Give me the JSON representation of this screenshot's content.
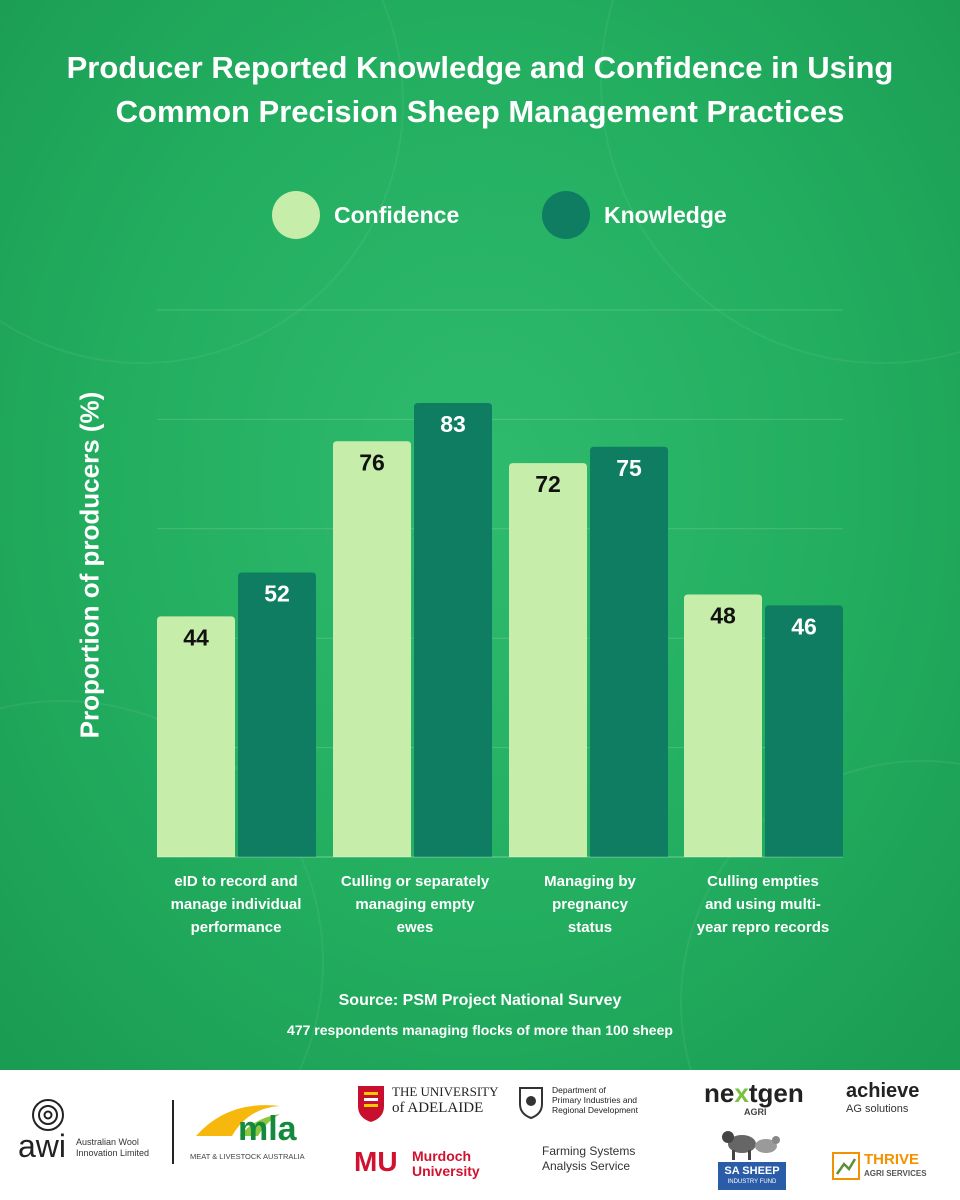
{
  "title_line1": "Producer Reported Knowledge and Confidence in Using",
  "title_line2": "Common Precision Sheep Management Practices",
  "colors": {
    "confidence": "#c6eeaa",
    "knowledge": "#0e7d62",
    "background": "#22ad5f",
    "mla": "#138a3c",
    "adelaide_red": "#c8102e",
    "thrive_orange": "#f39200"
  },
  "chart_data": {
    "type": "bar",
    "title": "Producer Reported Knowledge and Confidence in Using Common Precision Sheep Management Practices",
    "xlabel": "",
    "ylabel": "Proportion of producers (%)",
    "ylim": [
      0,
      100
    ],
    "grid": true,
    "legend": "top",
    "categories": [
      [
        "eID to record and",
        "manage individual",
        "performance"
      ],
      [
        "Culling or separately",
        "managing empty",
        "ewes"
      ],
      [
        "Managing by",
        "pregnancy",
        "status"
      ],
      [
        "Culling empties",
        "and using multi-",
        "year repro records"
      ]
    ],
    "series": [
      {
        "name": "Confidence",
        "values": [
          44,
          76,
          72,
          48
        ]
      },
      {
        "name": "Knowledge",
        "values": [
          52,
          83,
          75,
          46
        ]
      }
    ]
  },
  "source": "Source: PSM Project National Survey",
  "note": "477 respondents managing flocks of more than 100 sheep",
  "logos": {
    "awi": {
      "mark": "awi",
      "name_line1": "Australian Wool",
      "name_line2": "Innovation Limited"
    },
    "mla": {
      "mark": "mla",
      "sub": "MEAT & LIVESTOCK AUSTRALIA"
    },
    "adelaide": {
      "line1": "THE UNIVERSITY",
      "line2": "of ADELAIDE"
    },
    "murdoch": {
      "mark": "MU",
      "line1": "Murdoch",
      "line2": "University"
    },
    "dpird": {
      "line1": "Department of",
      "line2": "Primary Industries and",
      "line3": "Regional Development"
    },
    "fsas": {
      "line1": "Farming Systems",
      "line2": "Analysis Service"
    },
    "nextgen": {
      "part1": "ne",
      "part2": "x",
      "part3": "tgen",
      "sub": "AGRI"
    },
    "sasheep": {
      "line1": "SA SHEEP",
      "line2": "INDUSTRY FUND"
    },
    "achieve": {
      "main": "achieve",
      "sub": "AG solutions"
    },
    "thrive": {
      "line1": "THRIVE",
      "line2": "AGRI SERVICES"
    }
  }
}
